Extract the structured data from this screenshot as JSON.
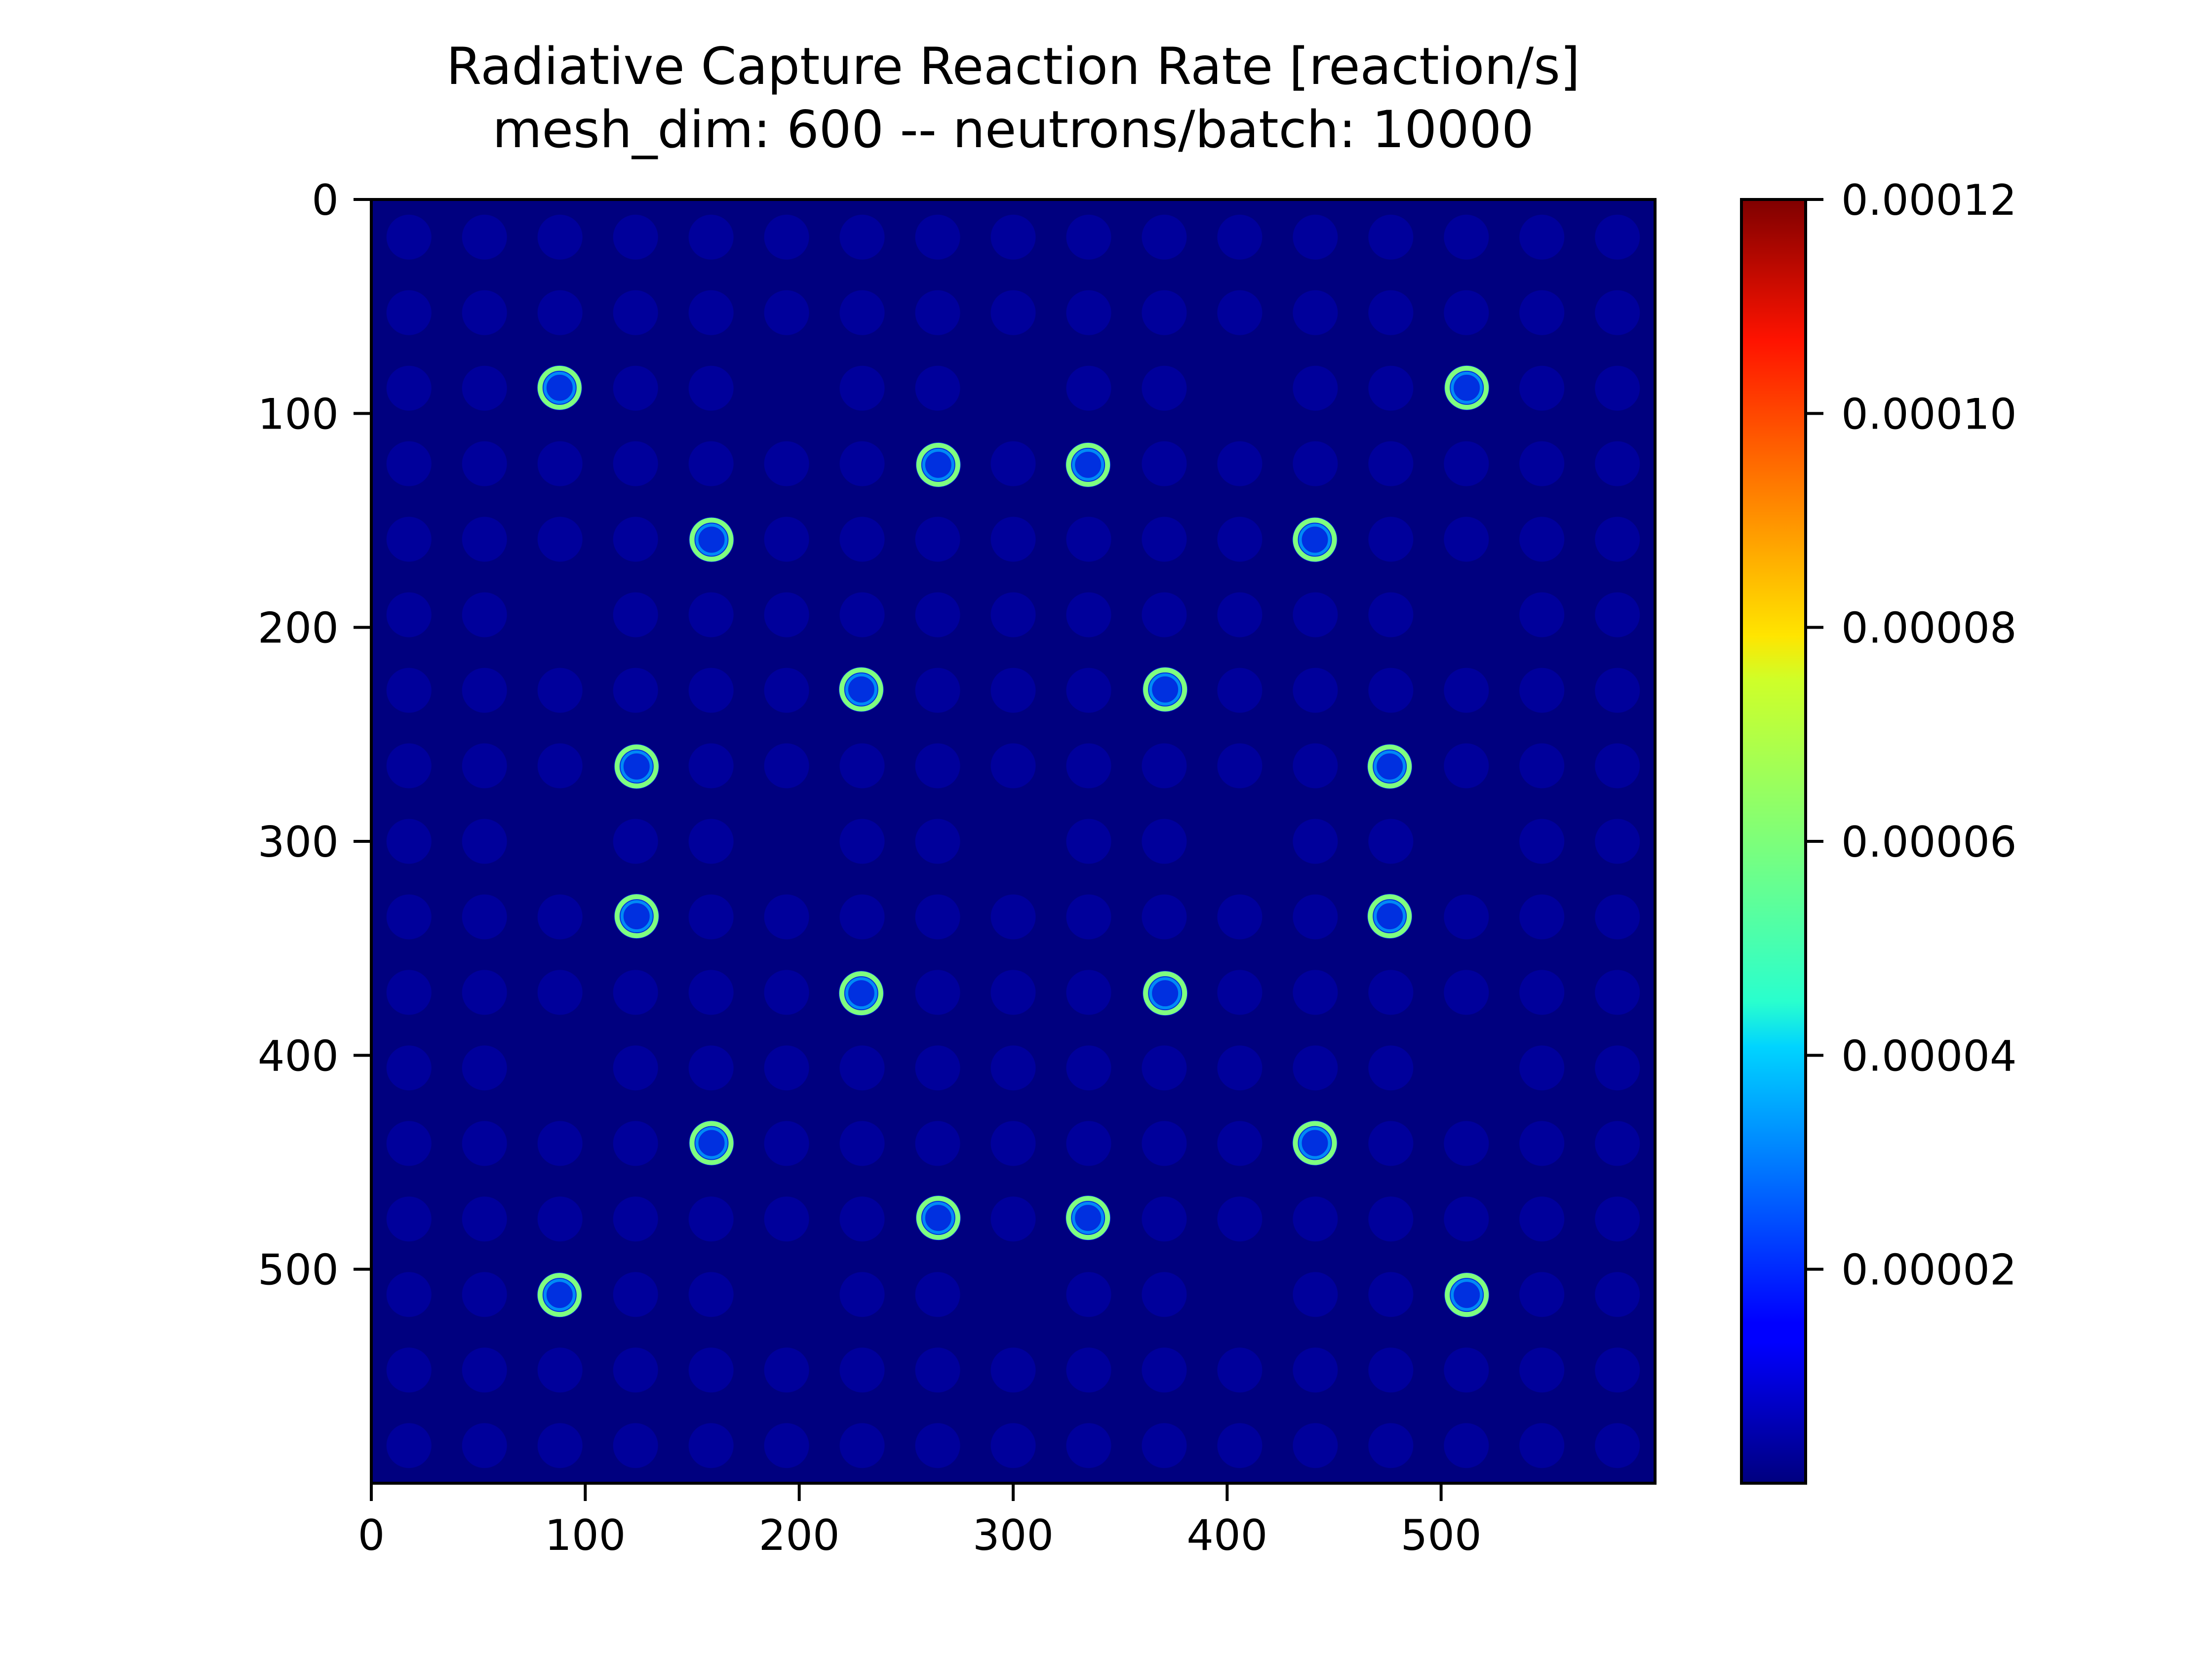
{
  "chart_data": {
    "type": "heatmap",
    "title": "Radiative Capture Reaction Rate [reaction/s]",
    "subtitle": "mesh_dim: 600 -- neutrons/batch: 10000",
    "xlabel": "",
    "ylabel": "",
    "xlim": [
      0,
      600
    ],
    "ylim": [
      600,
      0
    ],
    "x_ticks": [
      0,
      100,
      200,
      300,
      400,
      500
    ],
    "y_ticks": [
      0,
      100,
      200,
      300,
      400,
      500
    ],
    "x_tick_labels": [
      "0",
      "100",
      "200",
      "300",
      "400",
      "500"
    ],
    "y_tick_labels": [
      "0",
      "100",
      "200",
      "300",
      "400",
      "500"
    ],
    "colormap": "jet",
    "colorbar": {
      "range": [
        0,
        0.00012
      ],
      "ticks": [
        2e-05,
        4e-05,
        6e-05,
        8e-05,
        0.0001,
        0.00012
      ],
      "tick_labels": [
        "0.00002",
        "0.00004",
        "0.00006",
        "0.00008",
        "0.00010",
        "0.00012"
      ]
    },
    "background_value": 1e-06,
    "lattice": {
      "pitch": 35.3,
      "first_center": 17.6,
      "count": 17,
      "pin_radius": 10.5,
      "pin_value": 4e-06
    },
    "hot_pins": {
      "centers": [
        [
          88,
          88
        ],
        [
          512,
          88
        ],
        [
          265,
          124
        ],
        [
          335,
          124
        ],
        [
          159,
          159
        ],
        [
          441,
          159
        ],
        [
          229,
          229
        ],
        [
          371,
          229
        ],
        [
          124,
          265
        ],
        [
          476,
          265
        ],
        [
          124,
          335
        ],
        [
          476,
          335
        ],
        [
          229,
          371
        ],
        [
          371,
          371
        ],
        [
          159,
          441
        ],
        [
          441,
          441
        ],
        [
          265,
          476
        ],
        [
          335,
          476
        ],
        [
          88,
          512
        ],
        [
          512,
          512
        ]
      ],
      "radius": 10.5,
      "rim_value": 5.8e-05,
      "interior_value": 1.2e-05
    },
    "empty_positions": [
      [
        8,
        2
      ],
      [
        11,
        2
      ],
      [
        2,
        5
      ],
      [
        14,
        5
      ],
      [
        5,
        8
      ],
      [
        8,
        8
      ],
      [
        11,
        8
      ],
      [
        2,
        11
      ],
      [
        14,
        11
      ],
      [
        8,
        14
      ],
      [
        11,
        14
      ],
      [
        5,
        2
      ],
      [
        2,
        8
      ],
      [
        14,
        8
      ],
      [
        5,
        14
      ]
    ]
  },
  "colors": {
    "background": "#00007f",
    "pin": "#00009b",
    "hot_interior": "#0030e0",
    "rim": "#7fff7f"
  }
}
